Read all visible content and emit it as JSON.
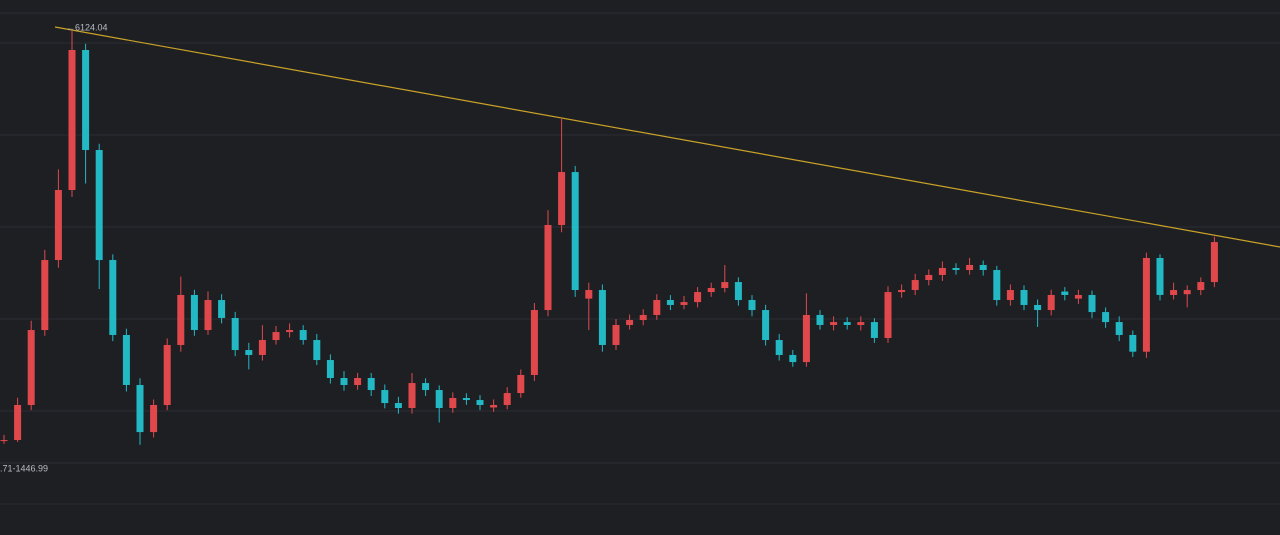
{
  "chart_data": {
    "type": "candlestick",
    "annotations": [
      "←6124.04",
      ".71-1446.99"
    ],
    "up_color": "#e0484c",
    "down_color": "#22b8c4",
    "ylim": [
      429,
      6474
    ],
    "open": [
      1490,
      1502,
      1898,
      2745,
      3536,
      4327,
      5909,
      4779,
      3536,
      2689,
      2124,
      1592,
      1898,
      2576,
      3141,
      2745,
      3084,
      2881,
      2519,
      2463,
      2632,
      2722,
      2745,
      2632,
      2406,
      2203,
      2124,
      2203,
      2067,
      1920,
      1864,
      2146,
      2067,
      1864,
      1977,
      1954,
      1870,
      1898,
      2033,
      2237,
      2971,
      3932,
      4530,
      3100,
      3197,
      2576,
      2802,
      2858,
      2915,
      3084,
      3028,
      3061,
      3174,
      3220,
      3287,
      3084,
      2971,
      2632,
      2463,
      2383,
      2915,
      2802,
      2835,
      2802,
      2835,
      2655,
      3174,
      3197,
      3310,
      3367,
      3446,
      3423,
      3480,
      3423,
      3084,
      3197,
      3028,
      2971,
      3180,
      3100,
      3141,
      2948,
      2835,
      2689,
      2500,
      3559,
      3141,
      3150,
      3197,
      3287
    ],
    "high": [
      1560,
      1980,
      2850,
      3650,
      4560,
      6124.04,
      5980,
      4850,
      3600,
      2760,
      2200,
      1960,
      2650,
      3350,
      3200,
      3180,
      3150,
      2950,
      2600,
      2800,
      2790,
      2820,
      2800,
      2700,
      2470,
      2280,
      2260,
      2260,
      2130,
      1990,
      2260,
      2200,
      2120,
      2040,
      2030,
      2010,
      1960,
      2100,
      2300,
      3050,
      4100,
      5129,
      4600,
      3280,
      3260,
      2870,
      2920,
      2980,
      3150,
      3140,
      3130,
      3230,
      3280,
      3480,
      3340,
      3140,
      3030,
      2700,
      2520,
      3160,
      2970,
      2900,
      2890,
      2900,
      2880,
      3240,
      3260,
      3380,
      3430,
      3520,
      3500,
      3560,
      3530,
      3470,
      3260,
      3250,
      3090,
      3200,
      3230,
      3200,
      3190,
      3000,
      2900,
      2740,
      3620,
      3600,
      3280,
      3250,
      3340,
      3800
    ],
    "low": [
      1460,
      1480,
      1840,
      2680,
      3450,
      4250,
      4400,
      3209,
      2620,
      2050,
      1446.99,
      1530,
      1840,
      2500,
      2680,
      2690,
      2820,
      2450,
      2300,
      2400,
      2580,
      2660,
      2580,
      2350,
      2140,
      2060,
      2070,
      2000,
      1860,
      1800,
      1800,
      2000,
      1700,
      1810,
      1900,
      1840,
      1820,
      1850,
      1980,
      2170,
      2900,
      3850,
      3120,
      2745,
      2500,
      2520,
      2750,
      2800,
      2860,
      2970,
      2980,
      3000,
      3120,
      3170,
      3020,
      2900,
      2570,
      2400,
      2330,
      2330,
      2750,
      2740,
      2750,
      2740,
      2600,
      2600,
      3110,
      3140,
      3250,
      3300,
      3370,
      3370,
      3360,
      3020,
      3020,
      2970,
      2780,
      2910,
      3080,
      3040,
      2880,
      2770,
      2620,
      2440,
      2430,
      3080,
      3090,
      3000,
      3140,
      3230
    ],
    "close": [
      1502,
      1898,
      2745,
      3536,
      4327,
      5909,
      4779,
      3536,
      2689,
      2124,
      1592,
      1898,
      2576,
      3141,
      2745,
      3084,
      2881,
      2519,
      2463,
      2632,
      2722,
      2745,
      2632,
      2406,
      2203,
      2124,
      2203,
      2067,
      1920,
      1864,
      2146,
      2067,
      1864,
      1977,
      1954,
      1898,
      1898,
      2033,
      2237,
      2971,
      3932,
      4530,
      3197,
      3197,
      2576,
      2802,
      2858,
      2915,
      3084,
      3028,
      3061,
      3174,
      3220,
      3287,
      3084,
      2971,
      2632,
      2463,
      2383,
      2915,
      2802,
      2835,
      2802,
      2835,
      2655,
      3174,
      3197,
      3310,
      3367,
      3446,
      3423,
      3480,
      3423,
      3084,
      3197,
      3028,
      2971,
      3141,
      3141,
      3141,
      2948,
      2835,
      2689,
      2500,
      3559,
      3141,
      3197,
      3197,
      3287,
      3739
    ]
  }
}
